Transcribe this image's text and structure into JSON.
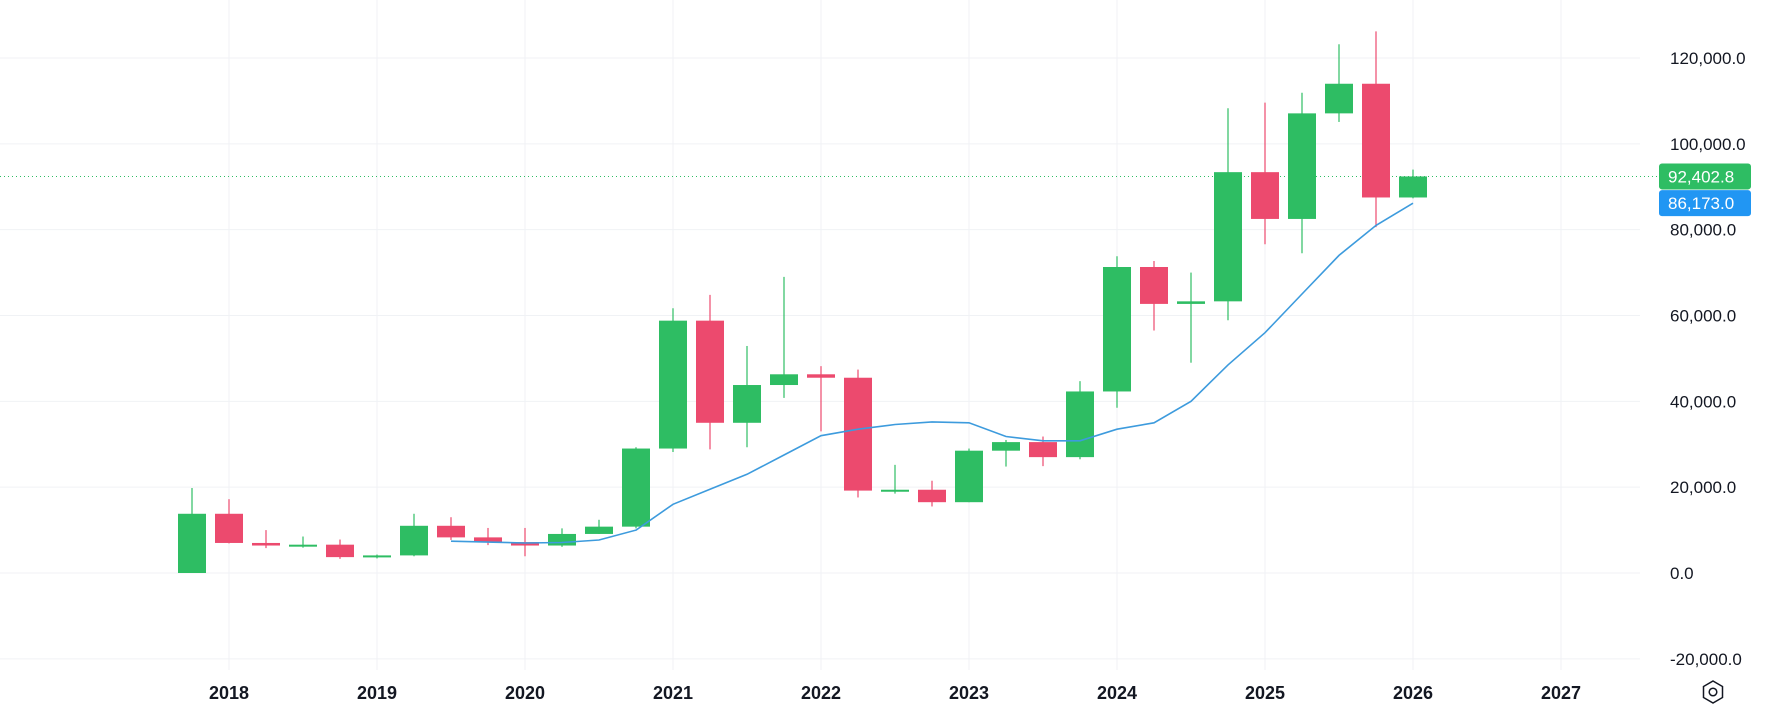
{
  "chart_data": {
    "type": "candlestick",
    "interval": "quarterly",
    "colors": {
      "up": "#2EBD63",
      "down": "#EC4A6E",
      "ma_line": "#3D9BDD",
      "grid": "#F0F2F5",
      "price_line": "#2EBD63",
      "last_badge": "#2EBD63",
      "ma_badge": "#2196F3"
    },
    "y_ticks": [
      "120,000.0",
      "100,000.0",
      "80,000.0",
      "60,000.0",
      "40,000.0",
      "20,000.0",
      "0.0",
      "-20,000.0"
    ],
    "y_tick_values": [
      120000,
      100000,
      80000,
      60000,
      40000,
      20000,
      0,
      -20000
    ],
    "ylim": [
      -22000,
      133000
    ],
    "x_ticks": [
      "2018",
      "2019",
      "2020",
      "2021",
      "2022",
      "2023",
      "2024",
      "2025",
      "2026",
      "2027"
    ],
    "x_tick_years": [
      2018,
      2019,
      2020,
      2021,
      2022,
      2023,
      2024,
      2025,
      2026,
      2027
    ],
    "last_price_label": "92,402.8",
    "last_price": 92402.8,
    "ma_label": "86,173.0",
    "ma_value": 86173.0,
    "candles": [
      {
        "t": 2017.75,
        "open": 0,
        "high": 19800,
        "low": 0,
        "close": 13800
      },
      {
        "t": 2018.0,
        "open": 13800,
        "high": 17200,
        "low": 6900,
        "close": 7000
      },
      {
        "t": 2018.25,
        "open": 7000,
        "high": 10000,
        "low": 5800,
        "close": 6400
      },
      {
        "t": 2018.5,
        "open": 6400,
        "high": 8500,
        "low": 5900,
        "close": 6600
      },
      {
        "t": 2018.75,
        "open": 6600,
        "high": 7800,
        "low": 3300,
        "close": 3700
      },
      {
        "t": 2019.0,
        "open": 3700,
        "high": 4300,
        "low": 3400,
        "close": 4100
      },
      {
        "t": 2019.25,
        "open": 4100,
        "high": 13800,
        "low": 3900,
        "close": 11000
      },
      {
        "t": 2019.5,
        "open": 11000,
        "high": 13000,
        "low": 7700,
        "close": 8300
      },
      {
        "t": 2019.75,
        "open": 8300,
        "high": 10500,
        "low": 6500,
        "close": 7200
      },
      {
        "t": 2020.0,
        "open": 7200,
        "high": 10500,
        "low": 3900,
        "close": 6400
      },
      {
        "t": 2020.25,
        "open": 6400,
        "high": 10400,
        "low": 6100,
        "close": 9100
      },
      {
        "t": 2020.5,
        "open": 9100,
        "high": 12400,
        "low": 9100,
        "close": 10800
      },
      {
        "t": 2020.75,
        "open": 10800,
        "high": 29300,
        "low": 10400,
        "close": 29000
      },
      {
        "t": 2021.0,
        "open": 29000,
        "high": 61700,
        "low": 28200,
        "close": 58800
      },
      {
        "t": 2021.25,
        "open": 58800,
        "high": 64800,
        "low": 28800,
        "close": 35000
      },
      {
        "t": 2021.5,
        "open": 35000,
        "high": 52900,
        "low": 29300,
        "close": 43800
      },
      {
        "t": 2021.75,
        "open": 43800,
        "high": 69000,
        "low": 40800,
        "close": 46300
      },
      {
        "t": 2022.0,
        "open": 46300,
        "high": 48200,
        "low": 33000,
        "close": 45500
      },
      {
        "t": 2022.25,
        "open": 45500,
        "high": 47400,
        "low": 17600,
        "close": 19200
      },
      {
        "t": 2022.5,
        "open": 19200,
        "high": 25200,
        "low": 18500,
        "close": 19400
      },
      {
        "t": 2022.75,
        "open": 19400,
        "high": 21500,
        "low": 15500,
        "close": 16500
      },
      {
        "t": 2023.0,
        "open": 16500,
        "high": 29000,
        "low": 16500,
        "close": 28500
      },
      {
        "t": 2023.25,
        "open": 28500,
        "high": 31000,
        "low": 24800,
        "close": 30500
      },
      {
        "t": 2023.5,
        "open": 30500,
        "high": 31800,
        "low": 24900,
        "close": 27000
      },
      {
        "t": 2023.75,
        "open": 27000,
        "high": 44700,
        "low": 26500,
        "close": 42300
      },
      {
        "t": 2024.0,
        "open": 42300,
        "high": 73800,
        "low": 38500,
        "close": 71300
      },
      {
        "t": 2024.25,
        "open": 71300,
        "high": 72700,
        "low": 56500,
        "close": 62700
      },
      {
        "t": 2024.5,
        "open": 62700,
        "high": 70000,
        "low": 49000,
        "close": 63300
      },
      {
        "t": 2024.75,
        "open": 63300,
        "high": 108300,
        "low": 58900,
        "close": 93400
      },
      {
        "t": 2025.0,
        "open": 93400,
        "high": 109600,
        "low": 76600,
        "close": 82500
      },
      {
        "t": 2025.25,
        "open": 82500,
        "high": 111900,
        "low": 74500,
        "close": 107100
      },
      {
        "t": 2025.5,
        "open": 107100,
        "high": 123200,
        "low": 105100,
        "close": 114000
      },
      {
        "t": 2025.75,
        "open": 114000,
        "high": 126200,
        "low": 80600,
        "close": 87500
      },
      {
        "t": 2026.0,
        "open": 87500,
        "high": 94000,
        "low": 87300,
        "close": 92400
      }
    ],
    "moving_average": [
      {
        "t": 2019.5,
        "v": 7400
      },
      {
        "t": 2019.75,
        "v": 7200
      },
      {
        "t": 2020.0,
        "v": 7000
      },
      {
        "t": 2020.25,
        "v": 7100
      },
      {
        "t": 2020.5,
        "v": 7700
      },
      {
        "t": 2020.75,
        "v": 10000
      },
      {
        "t": 2021.0,
        "v": 16000
      },
      {
        "t": 2021.25,
        "v": 19500
      },
      {
        "t": 2021.5,
        "v": 23000
      },
      {
        "t": 2021.75,
        "v": 27500
      },
      {
        "t": 2022.0,
        "v": 32000
      },
      {
        "t": 2022.25,
        "v": 33500
      },
      {
        "t": 2022.5,
        "v": 34600
      },
      {
        "t": 2022.75,
        "v": 35200
      },
      {
        "t": 2023.0,
        "v": 35000
      },
      {
        "t": 2023.25,
        "v": 31800
      },
      {
        "t": 2023.5,
        "v": 30800
      },
      {
        "t": 2023.75,
        "v": 30800
      },
      {
        "t": 2024.0,
        "v": 33500
      },
      {
        "t": 2024.25,
        "v": 35000
      },
      {
        "t": 2024.5,
        "v": 40000
      },
      {
        "t": 2024.75,
        "v": 48500
      },
      {
        "t": 2025.0,
        "v": 56000
      },
      {
        "t": 2025.25,
        "v": 65000
      },
      {
        "t": 2025.5,
        "v": 74000
      },
      {
        "t": 2025.75,
        "v": 81000
      },
      {
        "t": 2026.0,
        "v": 86173
      }
    ],
    "settings_icon": "hexagon-gear-icon"
  }
}
